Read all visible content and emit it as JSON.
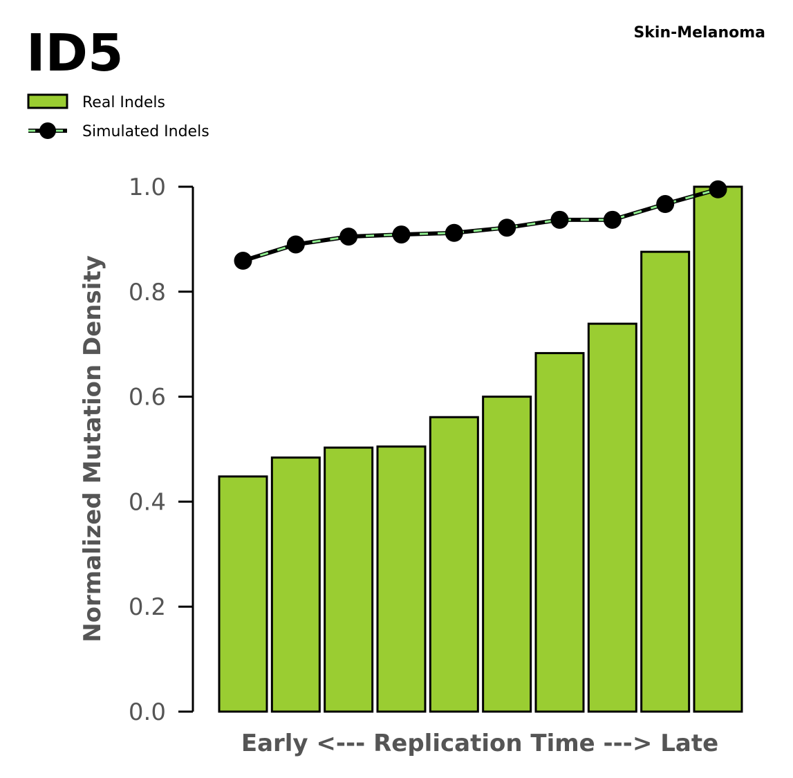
{
  "chart_data": {
    "type": "bar",
    "title": "ID5",
    "subtitle": "Skin-Melanoma",
    "xlabel": "Early <--- Replication Time ---> Late",
    "ylabel": "Normalized Mutation Density",
    "ylim": [
      0,
      1.0
    ],
    "yticks": [
      "0.0",
      "0.2",
      "0.4",
      "0.6",
      "0.8",
      "1.0"
    ],
    "grid": false,
    "legend_position": "top-left",
    "legend": {
      "bars_label": "Real Indels",
      "line_label": "Simulated Indels"
    },
    "bar_color": "#9ACD32",
    "line_color": "#000000",
    "line_dash_color": "#90EE90",
    "series": [
      {
        "name": "Real Indels",
        "kind": "bar",
        "values": [
          0.448,
          0.484,
          0.503,
          0.505,
          0.561,
          0.6,
          0.683,
          0.739,
          0.876,
          1.0
        ]
      },
      {
        "name": "Simulated Indels",
        "kind": "line",
        "values": [
          0.859,
          0.89,
          0.905,
          0.909,
          0.912,
          0.922,
          0.937,
          0.937,
          0.967,
          0.995
        ]
      }
    ]
  }
}
